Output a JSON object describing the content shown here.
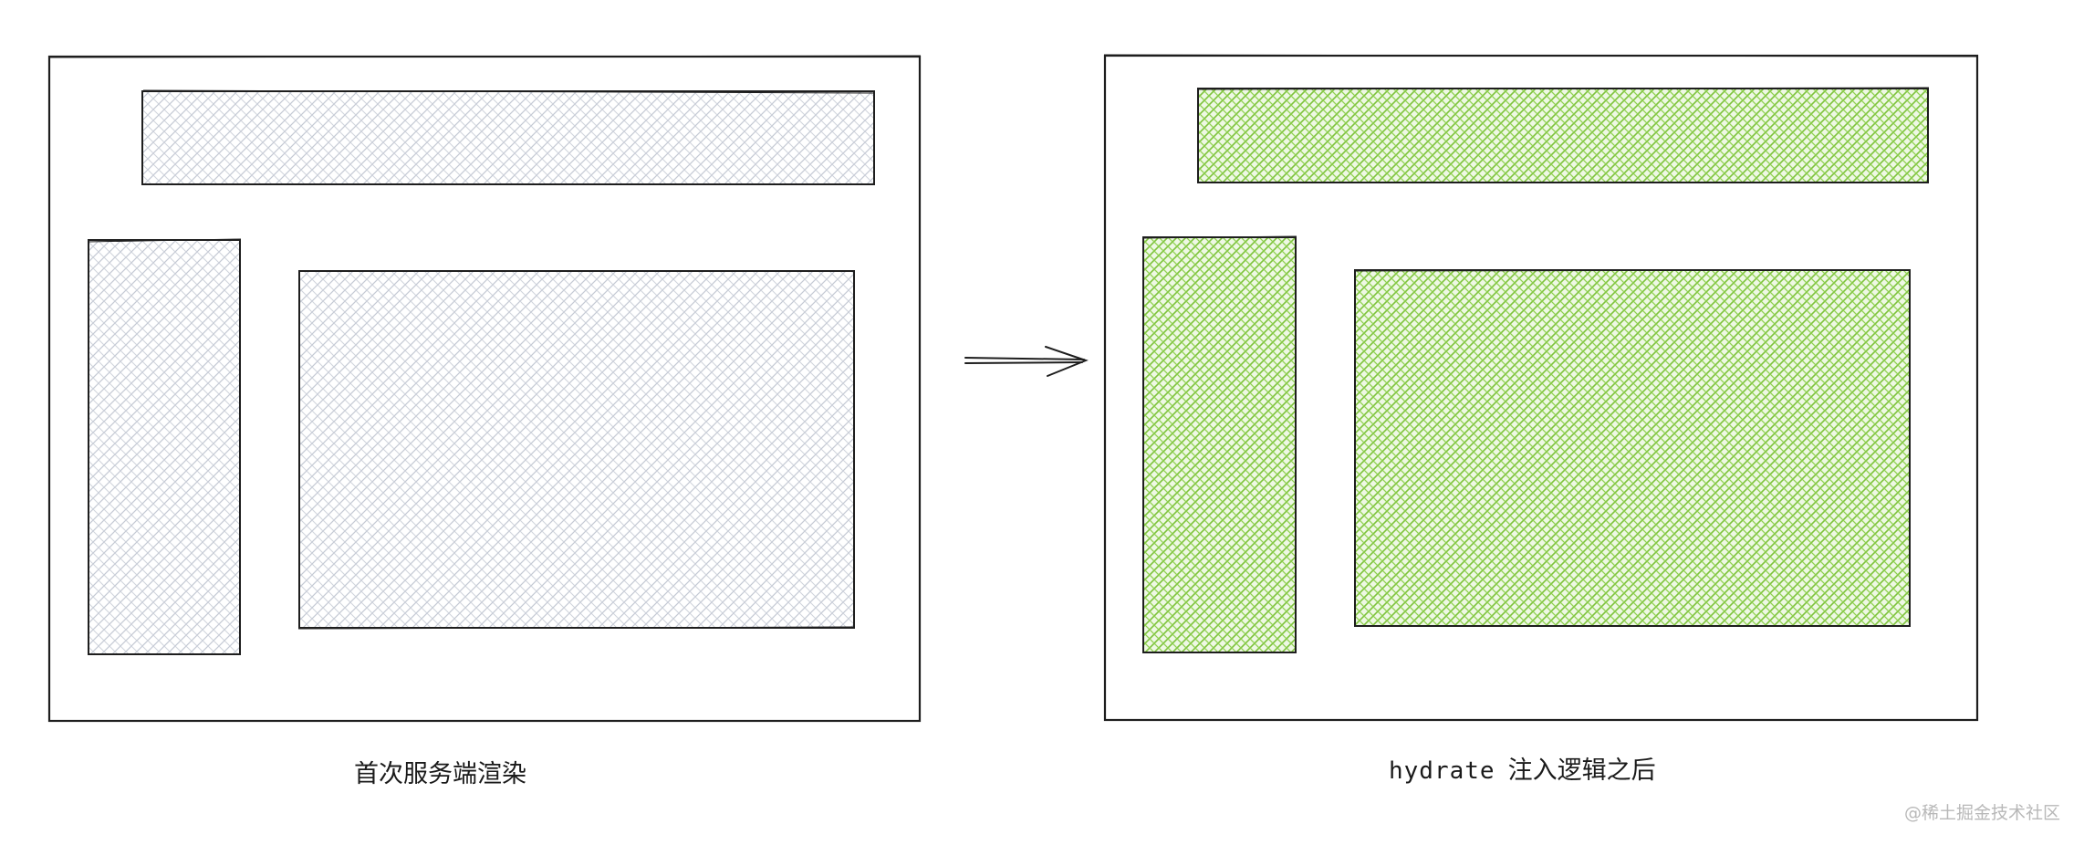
{
  "left_panel": {
    "caption": "首次服务端渲染",
    "fill_color": "#e3e6ec"
  },
  "right_panel": {
    "caption_prefix": "hydrate",
    "caption_text": "注入逻辑之后",
    "fill_color": "#8fd14f"
  },
  "arrow": {
    "direction": "right"
  },
  "watermark": "@稀土掘金技术社区",
  "colors": {
    "stroke": "#1e1e1e",
    "background": "#ffffff"
  }
}
